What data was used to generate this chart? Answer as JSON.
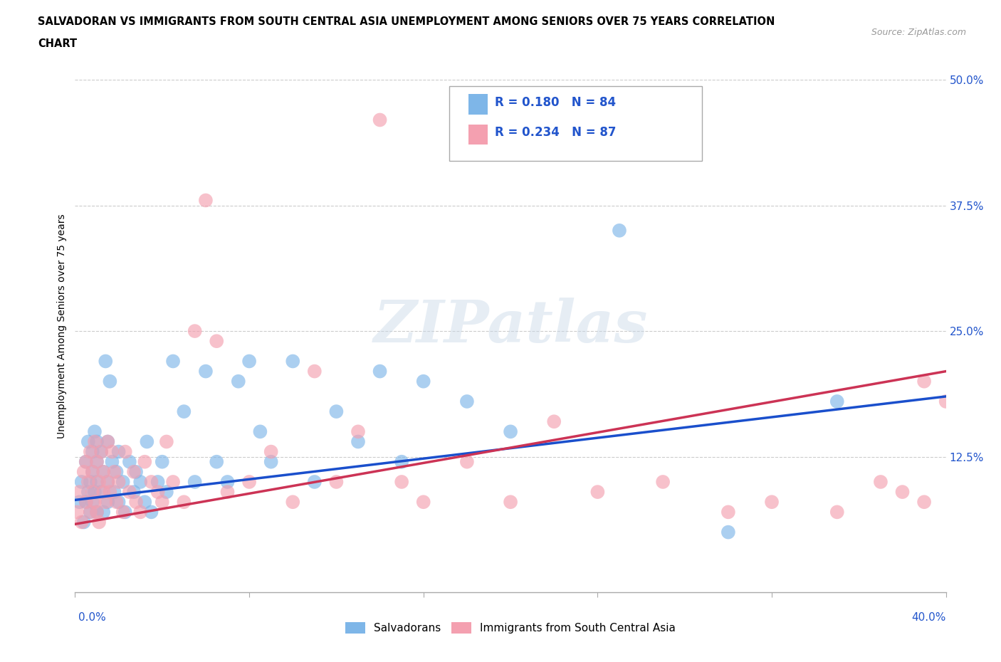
{
  "title_line1": "SALVADORAN VS IMMIGRANTS FROM SOUTH CENTRAL ASIA UNEMPLOYMENT AMONG SENIORS OVER 75 YEARS CORRELATION",
  "title_line2": "CHART",
  "source": "Source: ZipAtlas.com",
  "ylabel": "Unemployment Among Seniors over 75 years",
  "legend1_label": "Salvadorans",
  "legend2_label": "Immigrants from South Central Asia",
  "R1": 0.18,
  "N1": 84,
  "R2": 0.234,
  "N2": 87,
  "color1": "#7EB6E8",
  "color2": "#F4A0B0",
  "trendline1_color": "#1A4FCC",
  "trendline2_color": "#CC3355",
  "watermark": "ZIPatlas",
  "xlim": [
    0,
    0.4
  ],
  "ylim": [
    -0.01,
    0.52
  ],
  "ytick_vals": [
    0.0,
    0.125,
    0.25,
    0.375,
    0.5
  ],
  "ytick_labels": [
    "",
    "12.5%",
    "25.0%",
    "37.5%",
    "50.0%"
  ],
  "trend1_y0": 0.082,
  "trend1_y1": 0.185,
  "trend2_y0": 0.058,
  "trend2_y1": 0.21,
  "scatter1_x": [
    0.002,
    0.003,
    0.004,
    0.005,
    0.005,
    0.006,
    0.006,
    0.007,
    0.007,
    0.008,
    0.008,
    0.008,
    0.009,
    0.009,
    0.01,
    0.01,
    0.01,
    0.01,
    0.012,
    0.012,
    0.013,
    0.013,
    0.014,
    0.015,
    0.015,
    0.015,
    0.016,
    0.017,
    0.018,
    0.019,
    0.02,
    0.02,
    0.022,
    0.023,
    0.025,
    0.027,
    0.028,
    0.03,
    0.032,
    0.033,
    0.035,
    0.038,
    0.04,
    0.042,
    0.045,
    0.05,
    0.055,
    0.06,
    0.065,
    0.07,
    0.075,
    0.08,
    0.085,
    0.09,
    0.1,
    0.11,
    0.12,
    0.13,
    0.14,
    0.15,
    0.16,
    0.18,
    0.2,
    0.25,
    0.3,
    0.35
  ],
  "scatter1_y": [
    0.08,
    0.1,
    0.06,
    0.12,
    0.08,
    0.14,
    0.09,
    0.1,
    0.07,
    0.11,
    0.13,
    0.08,
    0.15,
    0.09,
    0.12,
    0.1,
    0.07,
    0.14,
    0.13,
    0.09,
    0.11,
    0.07,
    0.22,
    0.14,
    0.1,
    0.08,
    0.2,
    0.12,
    0.09,
    0.11,
    0.13,
    0.08,
    0.1,
    0.07,
    0.12,
    0.09,
    0.11,
    0.1,
    0.08,
    0.14,
    0.07,
    0.1,
    0.12,
    0.09,
    0.22,
    0.17,
    0.1,
    0.21,
    0.12,
    0.1,
    0.2,
    0.22,
    0.15,
    0.12,
    0.22,
    0.1,
    0.17,
    0.14,
    0.21,
    0.12,
    0.2,
    0.18,
    0.15,
    0.35,
    0.05,
    0.18
  ],
  "scatter2_x": [
    0.001,
    0.002,
    0.003,
    0.004,
    0.005,
    0.005,
    0.006,
    0.007,
    0.007,
    0.008,
    0.008,
    0.009,
    0.009,
    0.01,
    0.01,
    0.011,
    0.011,
    0.012,
    0.013,
    0.013,
    0.014,
    0.015,
    0.015,
    0.016,
    0.017,
    0.018,
    0.019,
    0.02,
    0.022,
    0.023,
    0.025,
    0.027,
    0.028,
    0.03,
    0.032,
    0.035,
    0.038,
    0.04,
    0.042,
    0.045,
    0.05,
    0.055,
    0.06,
    0.065,
    0.07,
    0.08,
    0.09,
    0.1,
    0.11,
    0.12,
    0.13,
    0.14,
    0.15,
    0.16,
    0.18,
    0.2,
    0.22,
    0.24,
    0.27,
    0.3,
    0.32,
    0.35,
    0.37,
    0.38,
    0.39,
    0.39,
    0.4
  ],
  "scatter2_y": [
    0.07,
    0.09,
    0.06,
    0.11,
    0.08,
    0.12,
    0.1,
    0.13,
    0.07,
    0.11,
    0.09,
    0.14,
    0.08,
    0.12,
    0.07,
    0.1,
    0.06,
    0.13,
    0.09,
    0.11,
    0.08,
    0.14,
    0.1,
    0.09,
    0.13,
    0.11,
    0.08,
    0.1,
    0.07,
    0.13,
    0.09,
    0.11,
    0.08,
    0.07,
    0.12,
    0.1,
    0.09,
    0.08,
    0.14,
    0.1,
    0.08,
    0.25,
    0.38,
    0.24,
    0.09,
    0.1,
    0.13,
    0.08,
    0.21,
    0.1,
    0.15,
    0.46,
    0.1,
    0.08,
    0.12,
    0.08,
    0.16,
    0.09,
    0.1,
    0.07,
    0.08,
    0.07,
    0.1,
    0.09,
    0.2,
    0.08,
    0.18
  ]
}
